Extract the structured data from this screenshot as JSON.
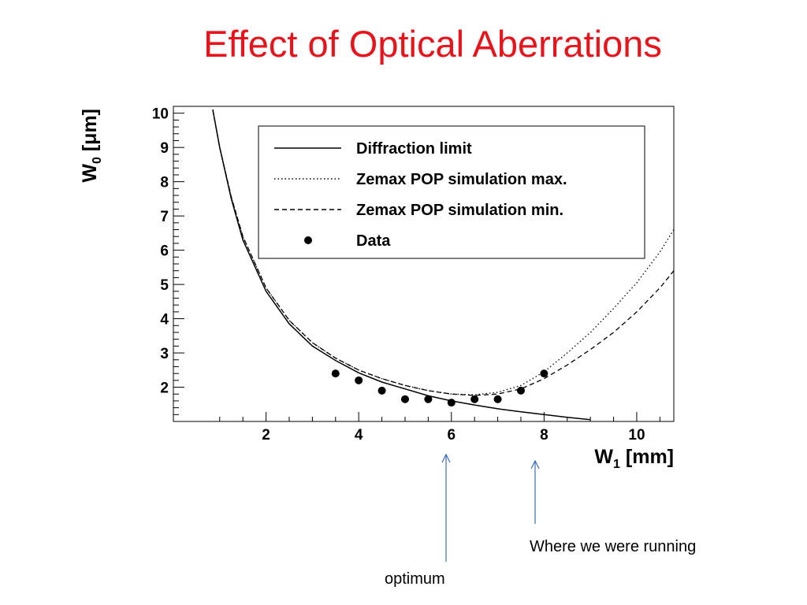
{
  "slide": {
    "title": "Effect of Optical Aberrations",
    "annotations": {
      "running": "Where we were running",
      "optimum": "optimum"
    },
    "colors": {
      "title": "#e8141c",
      "arrow": "#3a6fb7"
    }
  },
  "chart_data": {
    "type": "scatter",
    "title": "",
    "xlabel": "W_1 [mm]",
    "ylabel": "W_0 [μm]",
    "xlim": [
      0,
      10.8
    ],
    "ylim": [
      1.0,
      10.2
    ],
    "x_ticks": [
      2,
      4,
      6,
      8,
      10
    ],
    "y_ticks": [
      10,
      9,
      8,
      7,
      6,
      5,
      4,
      3,
      2
    ],
    "grid": false,
    "legend_position": "top-right",
    "series": [
      {
        "name": "Diffraction limit",
        "kind": "line",
        "style": "solid",
        "x": [
          0.85,
          1.0,
          1.25,
          1.5,
          2.0,
          2.5,
          3.0,
          3.5,
          4.0,
          4.5,
          5.0,
          5.5,
          6.0,
          6.5,
          7.0,
          7.5,
          8.0,
          8.5,
          9.0
        ],
        "y": [
          10.1,
          9.0,
          7.5,
          6.3,
          4.8,
          3.85,
          3.2,
          2.78,
          2.42,
          2.15,
          1.95,
          1.75,
          1.6,
          1.48,
          1.37,
          1.28,
          1.2,
          1.12,
          1.05
        ]
      },
      {
        "name": "Zemax POP simulation max.",
        "kind": "line",
        "style": "dotted",
        "x": [
          0.85,
          1.0,
          1.25,
          1.5,
          2.0,
          2.5,
          3.0,
          3.5,
          4.0,
          4.5,
          5.0,
          5.5,
          6.0,
          6.5,
          7.0,
          7.5,
          8.0,
          8.5,
          9.0,
          9.5,
          10.0,
          10.5,
          10.8
        ],
        "y": [
          10.1,
          9.0,
          7.55,
          6.4,
          4.9,
          3.95,
          3.3,
          2.85,
          2.5,
          2.25,
          2.05,
          1.9,
          1.8,
          1.78,
          1.85,
          2.05,
          2.45,
          3.0,
          3.6,
          4.3,
          5.05,
          5.95,
          6.6
        ]
      },
      {
        "name": "Zemax POP simulation min.",
        "kind": "line",
        "style": "dashed",
        "x": [
          0.85,
          1.0,
          1.25,
          1.5,
          2.0,
          2.5,
          3.0,
          3.5,
          4.0,
          4.5,
          5.0,
          5.5,
          6.0,
          6.5,
          7.0,
          7.5,
          8.0,
          8.5,
          9.0,
          9.5,
          10.0,
          10.5,
          10.8
        ],
        "y": [
          10.1,
          9.0,
          7.55,
          6.4,
          4.9,
          3.95,
          3.3,
          2.85,
          2.5,
          2.25,
          2.05,
          1.9,
          1.8,
          1.76,
          1.8,
          1.95,
          2.25,
          2.65,
          3.1,
          3.6,
          4.2,
          4.9,
          5.4
        ]
      },
      {
        "name": "Data",
        "kind": "points",
        "x": [
          3.5,
          4.0,
          4.5,
          5.0,
          5.5,
          6.0,
          6.5,
          7.0,
          7.5,
          8.0
        ],
        "y": [
          2.4,
          2.2,
          1.9,
          1.65,
          1.65,
          1.55,
          1.65,
          1.65,
          1.9,
          2.4
        ]
      }
    ]
  }
}
